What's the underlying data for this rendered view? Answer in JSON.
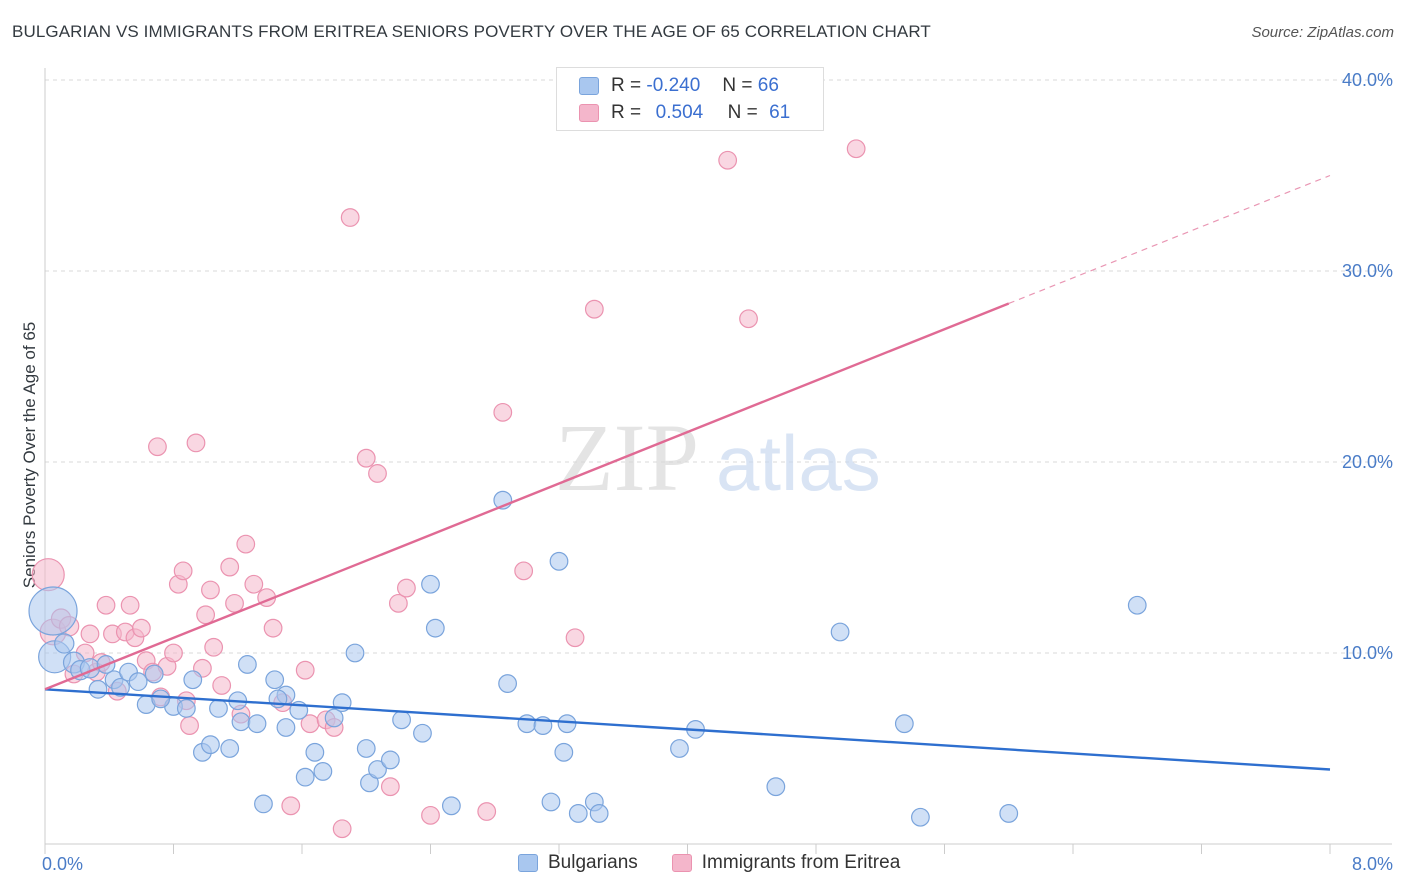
{
  "header": {
    "title": "BULGARIAN VS IMMIGRANTS FROM ERITREA SENIORS POVERTY OVER THE AGE OF 65 CORRELATION CHART",
    "source": "Source: ZipAtlas.com"
  },
  "legend_box": {
    "rows": [
      {
        "r_label": "R =",
        "r_value": "-0.240",
        "n_label": "N =",
        "n_value": "66"
      },
      {
        "r_label": "R =",
        "r_value": "0.504",
        "n_label": "N =",
        "n_value": "61"
      }
    ]
  },
  "watermark": {
    "zip": "ZIP",
    "atlas": "atlas"
  },
  "colors": {
    "blue_fill": "#a9c7ef",
    "blue_stroke": "#7aa4dc",
    "blue_line": "#2e6fcf",
    "pink_fill": "#f4b6cb",
    "pink_stroke": "#eb93b0",
    "pink_line": "#e06a94",
    "tick_text": "#4a7cc7",
    "grid": "#d8d8d8"
  },
  "chart_data": {
    "type": "scatter",
    "title": "BULGARIAN VS IMMIGRANTS FROM ERITREA SENIORS POVERTY OVER THE AGE OF 65 CORRELATION CHART",
    "xlabel": "",
    "ylabel": "Seniors Poverty Over the Age of 65",
    "xlim": [
      0,
      8
    ],
    "ylim": [
      0,
      40
    ],
    "x_tick_labels": [
      "0.0%",
      "8.0%"
    ],
    "y_tick_labels": [
      "10.0%",
      "20.0%",
      "30.0%",
      "40.0%"
    ],
    "y_ticks": [
      10,
      20,
      30,
      40
    ],
    "grid": true,
    "legend_position": "bottom",
    "series": [
      {
        "name": "Bulgarians",
        "color": "blue",
        "trend": {
          "x0": 0,
          "y0": 8.1,
          "x1": 8,
          "y1": 3.9
        },
        "points": [
          [
            0.05,
            12.2,
            3
          ],
          [
            0.06,
            9.8,
            2
          ],
          [
            0.12,
            10.5,
            1.2
          ],
          [
            0.18,
            9.5,
            1.3
          ],
          [
            0.22,
            9.1,
            1.2
          ],
          [
            0.28,
            9.2,
            1.2
          ],
          [
            0.33,
            8.1,
            1.1
          ],
          [
            0.38,
            9.4,
            1.1
          ],
          [
            0.43,
            8.6,
            1.1
          ],
          [
            0.47,
            8.2,
            1.1
          ],
          [
            0.52,
            9.0,
            1.1
          ],
          [
            0.58,
            8.5,
            1.1
          ],
          [
            0.63,
            7.3,
            1.1
          ],
          [
            0.68,
            8.9,
            1.1
          ],
          [
            0.8,
            7.2,
            1.1
          ],
          [
            0.88,
            7.1,
            1.1
          ],
          [
            0.92,
            8.6,
            1.1
          ],
          [
            0.98,
            4.8,
            1.1
          ],
          [
            1.03,
            5.2,
            1.1
          ],
          [
            1.08,
            7.1,
            1.1
          ],
          [
            1.15,
            5.0,
            1.1
          ],
          [
            1.2,
            7.5,
            1.1
          ],
          [
            1.22,
            6.4,
            1.1
          ],
          [
            1.26,
            9.4,
            1.1
          ],
          [
            1.32,
            6.3,
            1.1
          ],
          [
            1.36,
            2.1,
            1.1
          ],
          [
            1.43,
            8.6,
            1.1
          ],
          [
            1.5,
            6.1,
            1.1
          ],
          [
            1.5,
            7.8,
            1.1
          ],
          [
            1.58,
            7.0,
            1.1
          ],
          [
            1.62,
            3.5,
            1.1
          ],
          [
            1.68,
            4.8,
            1.1
          ],
          [
            1.73,
            3.8,
            1.1
          ],
          [
            1.8,
            6.6,
            1.1
          ],
          [
            1.85,
            7.4,
            1.1
          ],
          [
            1.93,
            10.0,
            1.1
          ],
          [
            2.0,
            5.0,
            1.1
          ],
          [
            2.02,
            3.2,
            1.1
          ],
          [
            2.07,
            3.9,
            1.1
          ],
          [
            2.15,
            4.4,
            1.1
          ],
          [
            2.22,
            6.5,
            1.1
          ],
          [
            2.35,
            5.8,
            1.1
          ],
          [
            2.4,
            13.6,
            1.1
          ],
          [
            2.43,
            11.3,
            1.1
          ],
          [
            2.53,
            2.0,
            1.1
          ],
          [
            2.85,
            18.0,
            1.1
          ],
          [
            2.88,
            8.4,
            1.1
          ],
          [
            3.0,
            6.3,
            1.1
          ],
          [
            3.1,
            6.2,
            1.1
          ],
          [
            3.15,
            2.2,
            1.1
          ],
          [
            3.2,
            14.8,
            1.1
          ],
          [
            3.23,
            4.8,
            1.1
          ],
          [
            3.25,
            6.3,
            1.1
          ],
          [
            3.32,
            1.6,
            1.1
          ],
          [
            3.42,
            2.2,
            1.1
          ],
          [
            3.45,
            1.6,
            1.1
          ],
          [
            3.95,
            5.0,
            1.1
          ],
          [
            4.05,
            6.0,
            1.1
          ],
          [
            4.55,
            3.0,
            1.1
          ],
          [
            4.95,
            11.1,
            1.1
          ],
          [
            5.35,
            6.3,
            1.1
          ],
          [
            5.45,
            1.4,
            1.1
          ],
          [
            6.0,
            1.6,
            1.1
          ],
          [
            6.8,
            12.5,
            1.1
          ],
          [
            1.45,
            7.6,
            1.1
          ],
          [
            0.72,
            7.6,
            1.1
          ]
        ]
      },
      {
        "name": "Immigrants from Eritrea",
        "color": "pink",
        "trend": {
          "x0": 0,
          "y0": 8.1,
          "x1": 6.0,
          "y1": 28.3,
          "dash_x1": 8.0,
          "dash_y1": 35.0
        },
        "points": [
          [
            0.02,
            14.1,
            2
          ],
          [
            0.05,
            11.1,
            1.6
          ],
          [
            0.1,
            11.8,
            1.2
          ],
          [
            0.15,
            11.4,
            1.2
          ],
          [
            0.18,
            8.9,
            1.1
          ],
          [
            0.25,
            10.0,
            1.1
          ],
          [
            0.28,
            11.0,
            1.1
          ],
          [
            0.32,
            9.0,
            1.1
          ],
          [
            0.38,
            12.5,
            1.1
          ],
          [
            0.42,
            11.0,
            1.1
          ],
          [
            0.45,
            8.0,
            1.1
          ],
          [
            0.5,
            11.1,
            1.1
          ],
          [
            0.53,
            12.5,
            1.1
          ],
          [
            0.56,
            10.8,
            1.1
          ],
          [
            0.6,
            11.3,
            1.1
          ],
          [
            0.63,
            9.6,
            1.1
          ],
          [
            0.67,
            9.0,
            1.1
          ],
          [
            0.7,
            20.8,
            1.1
          ],
          [
            0.72,
            7.7,
            1.1
          ],
          [
            0.76,
            9.3,
            1.1
          ],
          [
            0.8,
            10.0,
            1.1
          ],
          [
            0.83,
            13.6,
            1.1
          ],
          [
            0.86,
            14.3,
            1.1
          ],
          [
            0.9,
            6.2,
            1.1
          ],
          [
            0.94,
            21.0,
            1.1
          ],
          [
            0.98,
            9.2,
            1.1
          ],
          [
            1.0,
            12.0,
            1.1
          ],
          [
            1.03,
            13.3,
            1.1
          ],
          [
            1.05,
            10.3,
            1.1
          ],
          [
            1.1,
            8.3,
            1.1
          ],
          [
            1.15,
            14.5,
            1.1
          ],
          [
            1.18,
            12.6,
            1.1
          ],
          [
            1.22,
            6.8,
            1.1
          ],
          [
            1.25,
            15.7,
            1.1
          ],
          [
            1.3,
            13.6,
            1.1
          ],
          [
            1.38,
            12.9,
            1.1
          ],
          [
            1.42,
            11.3,
            1.1
          ],
          [
            1.48,
            7.4,
            1.1
          ],
          [
            1.53,
            2.0,
            1.1
          ],
          [
            1.65,
            6.3,
            1.1
          ],
          [
            1.75,
            6.5,
            1.1
          ],
          [
            1.8,
            6.1,
            1.1
          ],
          [
            1.85,
            0.8,
            1.1
          ],
          [
            1.9,
            32.8,
            1.1
          ],
          [
            2.0,
            20.2,
            1.1
          ],
          [
            2.07,
            19.4,
            1.1
          ],
          [
            2.15,
            3.0,
            1.1
          ],
          [
            2.2,
            12.6,
            1.1
          ],
          [
            2.25,
            13.4,
            1.1
          ],
          [
            2.4,
            1.5,
            1.1
          ],
          [
            2.75,
            1.7,
            1.1
          ],
          [
            2.85,
            22.6,
            1.1
          ],
          [
            2.98,
            14.3,
            1.1
          ],
          [
            3.3,
            10.8,
            1.1
          ],
          [
            3.42,
            28.0,
            1.1
          ],
          [
            4.25,
            35.8,
            1.1
          ],
          [
            4.38,
            27.5,
            1.1
          ],
          [
            5.05,
            36.4,
            1.1
          ],
          [
            0.88,
            7.5,
            1.1
          ],
          [
            1.62,
            9.1,
            1.1
          ],
          [
            0.35,
            9.5,
            1.1
          ]
        ]
      }
    ]
  }
}
